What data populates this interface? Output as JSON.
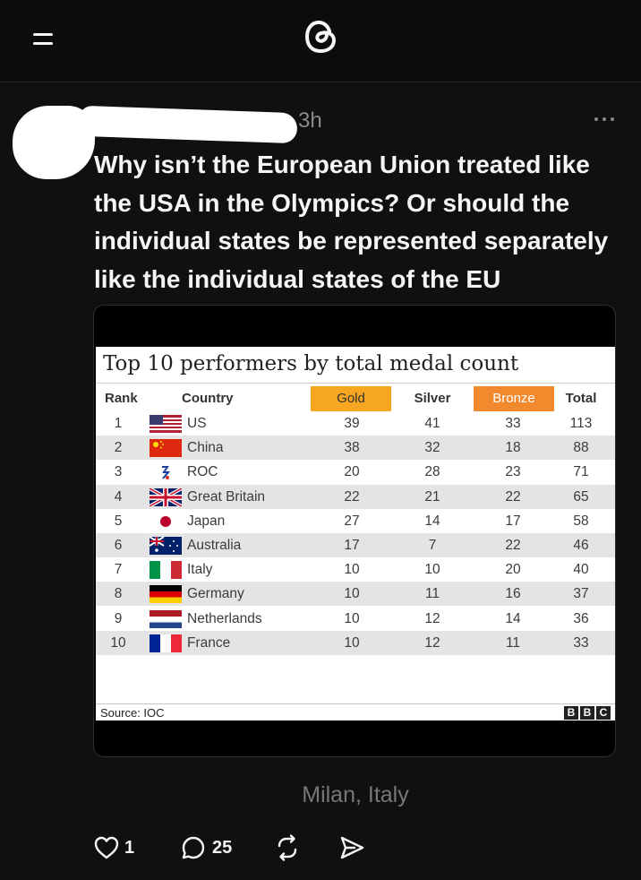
{
  "header": {
    "menu_icon": "menu-icon",
    "logo_icon": "threads-logo-icon"
  },
  "post": {
    "time": "3h",
    "text_lines": [
      "Why isn’t the European Union treated like",
      "the USA in the Olympics? Or should the",
      "individual states be represented separately",
      "like the individual states of the EU"
    ],
    "location": "Milan, Italy",
    "likes": "1",
    "replies": "25"
  },
  "chart_data": {
    "type": "table",
    "title": "Top 10 performers by total medal count",
    "columns": [
      "Rank",
      "Country",
      "Gold",
      "Silver",
      "Bronze",
      "Total"
    ],
    "rows": [
      [
        "1",
        "US",
        "39",
        "41",
        "33",
        "113"
      ],
      [
        "2",
        "China",
        "38",
        "32",
        "18",
        "88"
      ],
      [
        "3",
        "ROC",
        "20",
        "28",
        "23",
        "71"
      ],
      [
        "4",
        "Great Britain",
        "22",
        "21",
        "22",
        "65"
      ],
      [
        "5",
        "Japan",
        "27",
        "14",
        "17",
        "58"
      ],
      [
        "6",
        "Australia",
        "17",
        "7",
        "22",
        "46"
      ],
      [
        "7",
        "Italy",
        "10",
        "10",
        "20",
        "40"
      ],
      [
        "8",
        "Germany",
        "10",
        "11",
        "16",
        "37"
      ],
      [
        "9",
        "Netherlands",
        "10",
        "12",
        "14",
        "36"
      ],
      [
        "10",
        "France",
        "10",
        "12",
        "11",
        "33"
      ]
    ],
    "source": "Source: IOC",
    "logo": [
      "B",
      "B",
      "C"
    ],
    "colors": {
      "gold_header": "#f6a620",
      "bronze_header": "#f28a2d"
    }
  }
}
